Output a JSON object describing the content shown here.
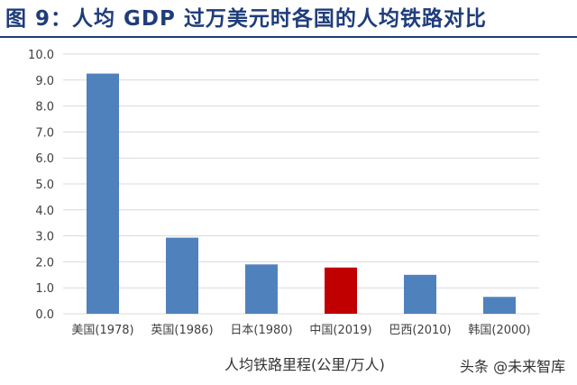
{
  "header": {
    "title": "图 9：人均 GDP 过万美元时各国的人均铁路对比"
  },
  "watermark": "头条 @未来智库",
  "chart_data": {
    "type": "bar",
    "categories": [
      "美国(1978)",
      "英国(1986)",
      "日本(1980)",
      "中国(2019)",
      "巴西(2010)",
      "韩国(2000)"
    ],
    "values": [
      9.25,
      2.93,
      1.9,
      1.78,
      1.5,
      0.65
    ],
    "bar_colors": [
      "#4f81bd",
      "#4f81bd",
      "#4f81bd",
      "#c00000",
      "#4f81bd",
      "#4f81bd"
    ],
    "y_ticks": [
      "0.0",
      "1.0",
      "2.0",
      "3.0",
      "4.0",
      "5.0",
      "6.0",
      "7.0",
      "8.0",
      "9.0",
      "10.0"
    ],
    "ylim": [
      0,
      10
    ],
    "xlabel": "人均铁路里程(公里/万人)",
    "grid": true
  }
}
